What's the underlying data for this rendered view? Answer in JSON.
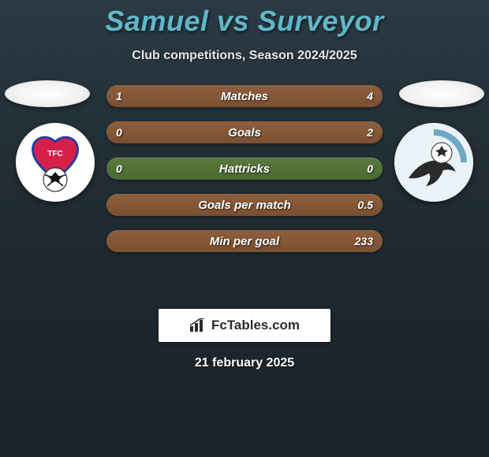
{
  "header": {
    "title": "Samuel vs Surveyor",
    "subtitle": "Club competitions, Season 2024/2025"
  },
  "stats": {
    "rows": [
      {
        "label": "Matches",
        "left": "1",
        "right": "4",
        "left_pct": 20,
        "right_pct": 80
      },
      {
        "label": "Goals",
        "left": "0",
        "right": "2",
        "left_pct": 0,
        "right_pct": 100
      },
      {
        "label": "Hattricks",
        "left": "0",
        "right": "0",
        "left_pct": 0,
        "right_pct": 0
      },
      {
        "label": "Goals per match",
        "left": "",
        "right": "0.5",
        "left_pct": 0,
        "right_pct": 100
      },
      {
        "label": "Min per goal",
        "left": "",
        "right": "233",
        "left_pct": 0,
        "right_pct": 100
      }
    ],
    "bar_bg_color": "#4a6933",
    "bar_fill_color": "#7a4f30",
    "text_color": "#ffffff"
  },
  "brand": {
    "label": "FcTables.com"
  },
  "footer": {
    "date": "21 february 2025"
  },
  "badges": {
    "left": {
      "type": "heart-shield",
      "primary": "#d5204a",
      "secondary": "#2b3c9e"
    },
    "right": {
      "type": "dolphin",
      "primary": "#2a2a2a",
      "secondary": "#9fd4ea",
      "ball_accent": "#ffffff"
    }
  },
  "colors": {
    "title": "#5fb8c9",
    "bg_top": "#2a3a44",
    "bg_bottom": "#1a232a"
  }
}
